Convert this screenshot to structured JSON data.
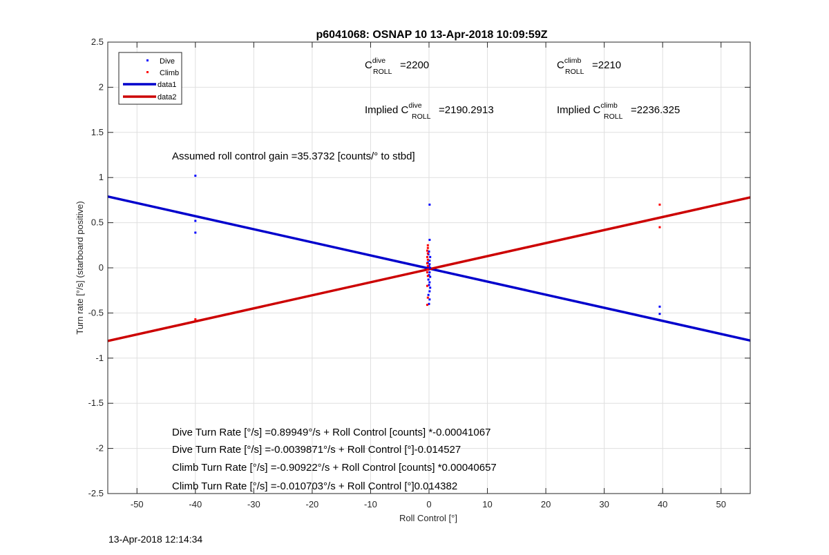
{
  "chart_data": {
    "type": "scatter",
    "title": "p6041068: OSNAP 10 13-Apr-2018 10:09:59Z",
    "xlabel": "Roll Control [°]",
    "ylabel": "Turn rate [°/s] (starboard positive)",
    "xlim": [
      -55,
      55
    ],
    "ylim": [
      -2.5,
      2.5
    ],
    "xticks": [
      -50,
      -40,
      -30,
      -20,
      -10,
      0,
      10,
      20,
      30,
      40,
      50
    ],
    "yticks": [
      -2.5,
      -2,
      -1.5,
      -1,
      -0.5,
      0,
      0.5,
      1,
      1.5,
      2,
      2.5
    ],
    "grid": true,
    "legend_position": "top-left",
    "series": [
      {
        "name": "Dive",
        "kind": "points",
        "color": "#0000ff",
        "points": [
          [
            -40,
            1.02
          ],
          [
            -40,
            0.52
          ],
          [
            -40,
            0.39
          ],
          [
            0.1,
            0.7
          ],
          [
            0.1,
            0.31
          ],
          [
            0.0,
            0.18
          ],
          [
            -0.1,
            0.15
          ],
          [
            0.2,
            0.12
          ],
          [
            0.1,
            0.08
          ],
          [
            -0.2,
            0.06
          ],
          [
            0.1,
            0.04
          ],
          [
            0.0,
            0.02
          ],
          [
            0.2,
            0.0
          ],
          [
            -0.1,
            -0.02
          ],
          [
            0.1,
            -0.05
          ],
          [
            0.0,
            -0.08
          ],
          [
            0.2,
            -0.1
          ],
          [
            -0.1,
            -0.13
          ],
          [
            0.1,
            -0.16
          ],
          [
            0.0,
            -0.19
          ],
          [
            0.2,
            -0.22
          ],
          [
            0.1,
            -0.26
          ],
          [
            -0.1,
            -0.3
          ],
          [
            0.1,
            -0.35
          ],
          [
            0.0,
            -0.4
          ],
          [
            39.5,
            -0.43
          ],
          [
            39.5,
            -0.51
          ]
        ]
      },
      {
        "name": "Climb",
        "kind": "points",
        "color": "#ff0000",
        "points": [
          [
            -40,
            -0.57
          ],
          [
            -0.2,
            0.25
          ],
          [
            -0.2,
            0.22
          ],
          [
            -0.3,
            0.19
          ],
          [
            -0.2,
            0.16
          ],
          [
            -0.3,
            0.12
          ],
          [
            -0.2,
            0.09
          ],
          [
            -0.3,
            0.05
          ],
          [
            -0.2,
            0.02
          ],
          [
            -0.2,
            -0.02
          ],
          [
            -0.3,
            -0.05
          ],
          [
            -0.2,
            -0.09
          ],
          [
            -0.3,
            -0.2
          ],
          [
            -0.2,
            -0.33
          ],
          [
            -0.3,
            -0.41
          ],
          [
            39.5,
            0.7
          ],
          [
            39.5,
            0.45
          ]
        ]
      },
      {
        "name": "data1",
        "kind": "line",
        "color": "#0000cc",
        "x": [
          -55,
          55
        ],
        "y": [
          0.79,
          -0.805
        ]
      },
      {
        "name": "data2",
        "kind": "line",
        "color": "#cc0000",
        "x": [
          -55,
          55
        ],
        "y": [
          -0.81,
          0.78
        ]
      }
    ],
    "annotations": {
      "c_dive": {
        "base": "C",
        "sup": "dive",
        "sub": "ROLL",
        "value": "=2200"
      },
      "c_climb": {
        "base": "C",
        "sup": "climb",
        "sub": "ROLL",
        "value": "=2210"
      },
      "implied_dive": {
        "prefix": "Implied C",
        "sup": "dive",
        "sub": "ROLL",
        "value": "=2190.2913"
      },
      "implied_climb": {
        "prefix": "Implied C",
        "sup": "climb",
        "sub": "ROLL",
        "value": "=2236.325"
      },
      "gain": "Assumed roll control gain =35.3732 [counts/° to stbd]",
      "eq_lines": [
        "Dive Turn Rate [°/s] =0.89949°/s + Roll Control [counts] *-0.00041067",
        "Dive Turn Rate [°/s] =-0.0039871°/s + Roll Control [°]-0.014527",
        "Climb Turn Rate [°/s] =-0.90922°/s + Roll Control [counts] *0.00040657",
        "Climb Turn Rate [°/s] =-0.010703°/s + Roll Control [°]0.014382"
      ]
    }
  },
  "footer": {
    "timestamp": "13-Apr-2018 12:14:34"
  }
}
